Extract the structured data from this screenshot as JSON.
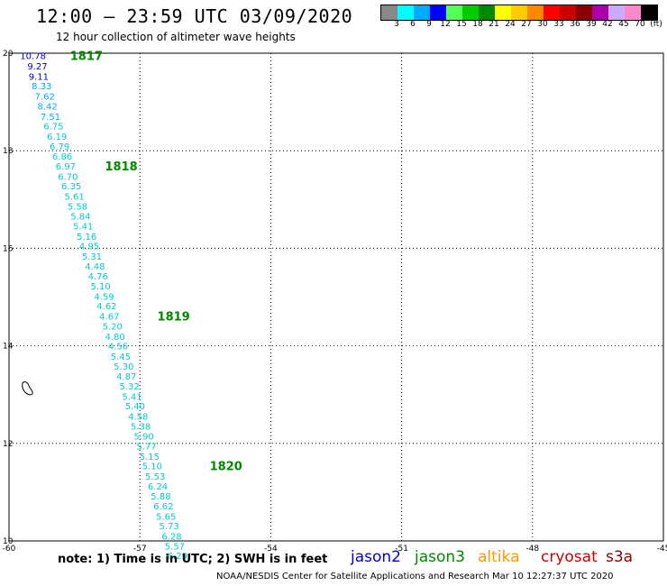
{
  "header": {
    "title": "12:00 — 23:59 UTC 03/09/2020",
    "subtitle": "12 hour collection of altimeter wave heights"
  },
  "legend": {
    "colors": [
      "#888888",
      "#00ffff",
      "#00aaff",
      "#0000ff",
      "#55ff55",
      "#00cc00",
      "#008800",
      "#ffff00",
      "#ffcc00",
      "#ff8800",
      "#ff0000",
      "#cc0000",
      "#880000",
      "#aa00aa",
      "#ccaaff",
      "#ff88cc",
      "#000000"
    ],
    "labels": [
      "3",
      "6",
      "9",
      "12",
      "15",
      "18",
      "21",
      "24",
      "27",
      "30",
      "33",
      "36",
      "39",
      "42",
      "45",
      "70",
      "(ft)"
    ]
  },
  "chart_data": {
    "type": "scatter",
    "xlim": [
      -60,
      -45
    ],
    "ylim": [
      10,
      20
    ],
    "x_ticks": [
      "-60",
      "-57",
      "-54",
      "-51",
      "-48",
      "-45"
    ],
    "y_ticks": [
      "10",
      "12",
      "14",
      "16",
      "18",
      "20"
    ],
    "grid": true,
    "points": [
      {
        "lon": -59.45,
        "lat": 19.95,
        "value": "10.78",
        "color": "#0000cc"
      },
      {
        "lon": -59.35,
        "lat": 19.74,
        "value": "9.27",
        "color": "#0000cc"
      },
      {
        "lon": -59.32,
        "lat": 19.53,
        "value": "9.11",
        "color": "#0000cc"
      },
      {
        "lon": -59.25,
        "lat": 19.33,
        "value": "8.33",
        "color": "#00aaff"
      },
      {
        "lon": -59.18,
        "lat": 19.12,
        "value": "7.62",
        "color": "#00aaff"
      },
      {
        "lon": -59.12,
        "lat": 18.92,
        "value": "8.42",
        "color": "#00aaff"
      },
      {
        "lon": -59.05,
        "lat": 18.71,
        "value": "7.51",
        "color": "#00aaff"
      },
      {
        "lon": -58.98,
        "lat": 18.51,
        "value": "6.75",
        "color": "#00cccc"
      },
      {
        "lon": -58.9,
        "lat": 18.3,
        "value": "6.19",
        "color": "#00cccc"
      },
      {
        "lon": -58.84,
        "lat": 18.1,
        "value": "6.79",
        "color": "#00cccc"
      },
      {
        "lon": -58.78,
        "lat": 17.89,
        "value": "6.86",
        "color": "#00cccc"
      },
      {
        "lon": -58.7,
        "lat": 17.69,
        "value": "6.97",
        "color": "#00cccc"
      },
      {
        "lon": -58.65,
        "lat": 17.48,
        "value": "6.70",
        "color": "#00cccc"
      },
      {
        "lon": -58.57,
        "lat": 17.28,
        "value": "6.35",
        "color": "#00cccc"
      },
      {
        "lon": -58.5,
        "lat": 17.07,
        "value": "5.61",
        "color": "#00cccc"
      },
      {
        "lon": -58.43,
        "lat": 16.87,
        "value": "5.58",
        "color": "#00cccc"
      },
      {
        "lon": -58.36,
        "lat": 16.66,
        "value": "5.84",
        "color": "#00cccc"
      },
      {
        "lon": -58.3,
        "lat": 16.46,
        "value": "5.41",
        "color": "#00cccc"
      },
      {
        "lon": -58.22,
        "lat": 16.25,
        "value": "5.16",
        "color": "#00cccc"
      },
      {
        "lon": -58.16,
        "lat": 16.05,
        "value": "4.95",
        "color": "#00cccc"
      },
      {
        "lon": -58.1,
        "lat": 15.84,
        "value": "5.31",
        "color": "#00cccc"
      },
      {
        "lon": -58.03,
        "lat": 15.64,
        "value": "4.48",
        "color": "#00cccc"
      },
      {
        "lon": -57.96,
        "lat": 15.43,
        "value": "4.76",
        "color": "#00cccc"
      },
      {
        "lon": -57.9,
        "lat": 15.23,
        "value": "5.10",
        "color": "#00cccc"
      },
      {
        "lon": -57.82,
        "lat": 15.02,
        "value": "4.59",
        "color": "#00cccc"
      },
      {
        "lon": -57.76,
        "lat": 14.82,
        "value": "4.62",
        "color": "#00cccc"
      },
      {
        "lon": -57.7,
        "lat": 14.61,
        "value": "4.67",
        "color": "#00cccc"
      },
      {
        "lon": -57.63,
        "lat": 14.41,
        "value": "5.20",
        "color": "#00cccc"
      },
      {
        "lon": -57.57,
        "lat": 14.2,
        "value": "4.80",
        "color": "#00cccc"
      },
      {
        "lon": -57.5,
        "lat": 14.0,
        "value": "4.56",
        "color": "#00cccc"
      },
      {
        "lon": -57.44,
        "lat": 13.79,
        "value": "5.45",
        "color": "#00cccc"
      },
      {
        "lon": -57.37,
        "lat": 13.59,
        "value": "5.30",
        "color": "#00cccc"
      },
      {
        "lon": -57.31,
        "lat": 13.38,
        "value": "4.87",
        "color": "#00cccc"
      },
      {
        "lon": -57.24,
        "lat": 13.18,
        "value": "5.32",
        "color": "#00cccc"
      },
      {
        "lon": -57.18,
        "lat": 12.97,
        "value": "5.41",
        "color": "#00cccc"
      },
      {
        "lon": -57.11,
        "lat": 12.77,
        "value": "5.40",
        "color": "#00cccc"
      },
      {
        "lon": -57.04,
        "lat": 12.56,
        "value": "4.58",
        "color": "#00cccc"
      },
      {
        "lon": -56.98,
        "lat": 12.36,
        "value": "5.38",
        "color": "#00cccc"
      },
      {
        "lon": -56.91,
        "lat": 12.15,
        "value": "5.90",
        "color": "#00cccc"
      },
      {
        "lon": -56.85,
        "lat": 11.95,
        "value": "5.77",
        "color": "#00cccc"
      },
      {
        "lon": -56.78,
        "lat": 11.74,
        "value": "5.15",
        "color": "#00cccc"
      },
      {
        "lon": -56.72,
        "lat": 11.54,
        "value": "5.10",
        "color": "#00cccc"
      },
      {
        "lon": -56.65,
        "lat": 11.33,
        "value": "5.53",
        "color": "#00cccc"
      },
      {
        "lon": -56.59,
        "lat": 11.13,
        "value": "6.24",
        "color": "#00cccc"
      },
      {
        "lon": -56.52,
        "lat": 10.92,
        "value": "5.88",
        "color": "#00cccc"
      },
      {
        "lon": -56.46,
        "lat": 10.72,
        "value": "6.62",
        "color": "#00cccc"
      },
      {
        "lon": -56.4,
        "lat": 10.51,
        "value": "5.65",
        "color": "#00cccc"
      },
      {
        "lon": -56.33,
        "lat": 10.31,
        "value": "5.73",
        "color": "#00cccc"
      },
      {
        "lon": -56.27,
        "lat": 10.1,
        "value": "6.28",
        "color": "#00cccc"
      },
      {
        "lon": -56.2,
        "lat": 9.9,
        "value": "5.57",
        "color": "#00cccc"
      },
      {
        "lon": -56.14,
        "lat": 9.7,
        "value": "6.29",
        "color": "#00cccc"
      }
    ],
    "time_labels": [
      {
        "lon": -58.6,
        "lat": 19.95,
        "text": "1817"
      },
      {
        "lon": -57.8,
        "lat": 17.69,
        "text": "1818"
      },
      {
        "lon": -56.6,
        "lat": 14.61,
        "text": "1819"
      },
      {
        "lon": -55.4,
        "lat": 11.54,
        "text": "1820"
      }
    ]
  },
  "footer": {
    "note": "note: 1) Time is in UTC; 2) SWH is in feet",
    "satellites": [
      {
        "name": "jason2",
        "color": "#0000cc"
      },
      {
        "name": "jason3",
        "color": "#008800"
      },
      {
        "name": "altika",
        "color": "#ff9900"
      },
      {
        "name": "cryosat",
        "color": "#cc0000"
      },
      {
        "name": "s3a",
        "color": "#880000"
      }
    ],
    "credit": "NOAA/NESDIS Center for Satellite Applications and Research    Mar 10 12:27:37 UTC 2020"
  }
}
